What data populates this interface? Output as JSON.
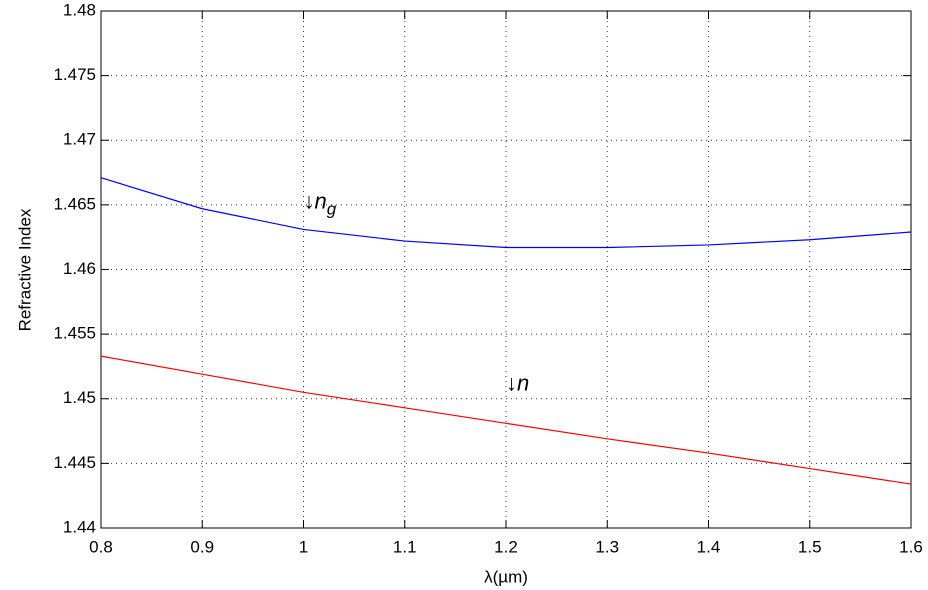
{
  "chart_data": {
    "type": "line",
    "x_label": "λ(µm)",
    "y_label": "Refractive Index",
    "x": [
      0.8,
      0.9,
      1.0,
      1.1,
      1.2,
      1.3,
      1.4,
      1.5,
      1.6
    ],
    "series": [
      {
        "name": "n_g",
        "color": "#0000ff",
        "values": [
          1.4671,
          1.4647,
          1.4631,
          1.4622,
          1.4617,
          1.4617,
          1.4619,
          1.4623,
          1.4629
        ]
      },
      {
        "name": "n",
        "color": "#ff0000",
        "values": [
          1.4533,
          1.4519,
          1.4505,
          1.4493,
          1.4481,
          1.4469,
          1.4458,
          1.4446,
          1.4434
        ]
      }
    ],
    "annotations": [
      {
        "text": "↓n",
        "sub": "g",
        "x": 1.0,
        "y": 1.4652
      },
      {
        "text": "↓n",
        "x": 1.2,
        "y": 1.4511
      }
    ],
    "xlim": [
      0.8,
      1.6
    ],
    "xticks": [
      0.8,
      0.9,
      1,
      1.1,
      1.2,
      1.3,
      1.4,
      1.5,
      1.6
    ],
    "ylim": [
      1.44,
      1.48
    ],
    "yticks": [
      1.44,
      1.445,
      1.45,
      1.455,
      1.46,
      1.465,
      1.47,
      1.475,
      1.48
    ],
    "grid": true
  }
}
